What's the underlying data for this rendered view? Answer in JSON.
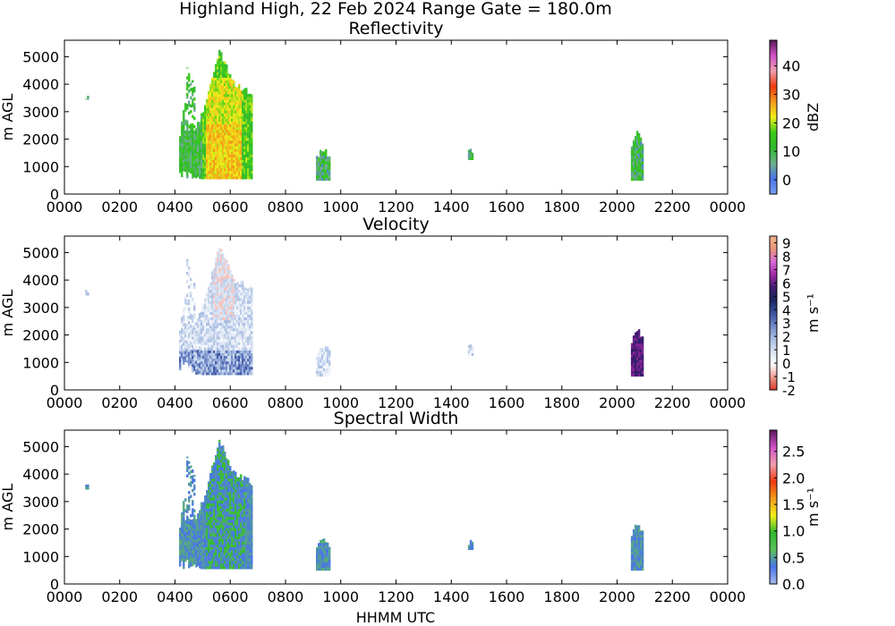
{
  "figure": {
    "title": "Highland High, 22 Feb 2024 Range Gate = 180.0m",
    "xlabel": "HHMM UTC"
  },
  "chart_data": [
    {
      "type": "heatmap",
      "title": "Reflectivity",
      "ylabel": "m AGL",
      "xticks": [
        "0000",
        "0200",
        "0400",
        "0600",
        "0800",
        "1000",
        "1200",
        "1400",
        "1600",
        "1800",
        "2000",
        "2200",
        "0000"
      ],
      "yticks": [
        0,
        1000,
        2000,
        3000,
        4000,
        5000
      ],
      "xlim_hours": [
        0,
        24
      ],
      "ylim": [
        0,
        5600
      ],
      "colorbar": {
        "label": "dBZ",
        "ticks": [
          "0",
          "10",
          "20",
          "30",
          "40"
        ],
        "range": [
          -5,
          49
        ]
      },
      "echoes": [
        {
          "t_start": 0.75,
          "t_end": 0.85,
          "h_bottom": 3450,
          "h_top": 3650
        },
        {
          "t_start": 4.15,
          "t_end": 6.75,
          "h_bottom": 550,
          "h_top": 5250
        },
        {
          "t_start": 9.1,
          "t_end": 9.6,
          "h_bottom": 500,
          "h_top": 1650
        },
        {
          "t_start": 14.6,
          "t_end": 14.75,
          "h_bottom": 1250,
          "h_top": 1650
        },
        {
          "t_start": 20.5,
          "t_end": 20.95,
          "h_bottom": 500,
          "h_top": 2300
        }
      ]
    },
    {
      "type": "heatmap",
      "title": "Velocity",
      "ylabel": "m AGL",
      "xticks": [
        "0000",
        "0200",
        "0400",
        "0600",
        "0800",
        "1000",
        "1200",
        "1400",
        "1600",
        "1800",
        "2000",
        "2200",
        "0000"
      ],
      "yticks": [
        0,
        1000,
        2000,
        3000,
        4000,
        5000
      ],
      "xlim_hours": [
        0,
        24
      ],
      "ylim": [
        0,
        5600
      ],
      "colorbar": {
        "label": "m s⁻¹",
        "ticks": [
          "9",
          "8",
          "7",
          "6",
          "5",
          "4",
          "3",
          "2",
          "1",
          "0",
          "-1",
          "-2"
        ],
        "range": [
          -2,
          9.5
        ]
      },
      "echoes": [
        {
          "t_start": 0.75,
          "t_end": 0.85,
          "h_bottom": 3450,
          "h_top": 3650
        },
        {
          "t_start": 4.15,
          "t_end": 6.75,
          "h_bottom": 550,
          "h_top": 5250
        },
        {
          "t_start": 9.1,
          "t_end": 9.6,
          "h_bottom": 500,
          "h_top": 1650
        },
        {
          "t_start": 14.6,
          "t_end": 14.75,
          "h_bottom": 1250,
          "h_top": 1650
        },
        {
          "t_start": 20.5,
          "t_end": 20.95,
          "h_bottom": 500,
          "h_top": 2300
        }
      ]
    },
    {
      "type": "heatmap",
      "title": "Spectral Width",
      "ylabel": "m AGL",
      "xticks": [
        "0000",
        "0200",
        "0400",
        "0600",
        "0800",
        "1000",
        "1200",
        "1400",
        "1600",
        "1800",
        "2000",
        "2200",
        "0000"
      ],
      "yticks": [
        0,
        1000,
        2000,
        3000,
        4000,
        5000
      ],
      "xlim_hours": [
        0,
        24
      ],
      "ylim": [
        0,
        5600
      ],
      "colorbar": {
        "label": "m s⁻¹",
        "ticks": [
          "0.0",
          "0.5",
          "1.0",
          "1.5",
          "2.0",
          "2.5"
        ],
        "range": [
          0,
          2.9
        ]
      },
      "echoes": [
        {
          "t_start": 0.75,
          "t_end": 0.85,
          "h_bottom": 3450,
          "h_top": 3650
        },
        {
          "t_start": 4.15,
          "t_end": 6.75,
          "h_bottom": 550,
          "h_top": 5250
        },
        {
          "t_start": 9.1,
          "t_end": 9.6,
          "h_bottom": 500,
          "h_top": 1650
        },
        {
          "t_start": 14.6,
          "t_end": 14.75,
          "h_bottom": 1250,
          "h_top": 1650
        },
        {
          "t_start": 20.5,
          "t_end": 20.95,
          "h_bottom": 500,
          "h_top": 2300
        }
      ]
    }
  ],
  "colors": {
    "reflectivity": [
      "#7aa0f2",
      "#4a74e8",
      "#6fb08a",
      "#2fb82f",
      "#3ccc1a",
      "#f2ef1a",
      "#f29a1a",
      "#ef3a12",
      "#f0a0b0",
      "#d050c8",
      "#5a1a5a"
    ],
    "velocity": [
      "#d63a2a",
      "#ee9a90",
      "#ffffff",
      "#d8e2f2",
      "#a8bde2",
      "#7088c8",
      "#3a52a0",
      "#1a2660",
      "#401a70",
      "#a02aa8",
      "#d86ad8",
      "#e89878",
      "#f0b090"
    ],
    "spectral_width": [
      "#a8bcf0",
      "#4a74e8",
      "#5ac05a",
      "#2fb82f",
      "#f2ef1a",
      "#f29a1a",
      "#ef3a12",
      "#f0a0b0",
      "#d050c8",
      "#5a1a5a"
    ]
  }
}
